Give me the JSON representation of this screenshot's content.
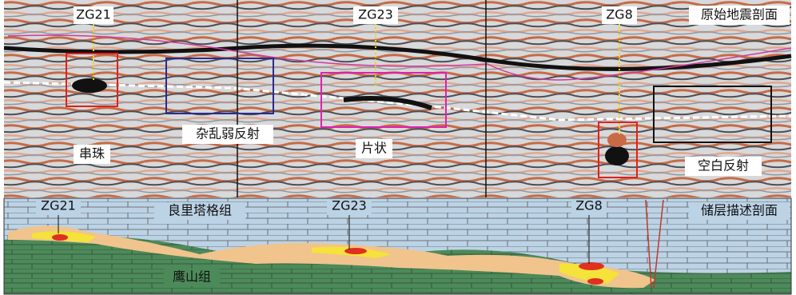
{
  "seismic_section": {
    "title": "原始地震剖面",
    "wells": [
      "ZG21",
      "ZG23",
      "ZG8"
    ],
    "features": [
      "串珠",
      "杂乱弱反射",
      "片状",
      "空白反射"
    ]
  },
  "reservoir_section": {
    "title": "储层描述剖面",
    "wells": [
      "ZG21",
      "ZG23",
      "ZG8"
    ],
    "formations": [
      "良里塔格组",
      "鹰山组"
    ]
  }
}
